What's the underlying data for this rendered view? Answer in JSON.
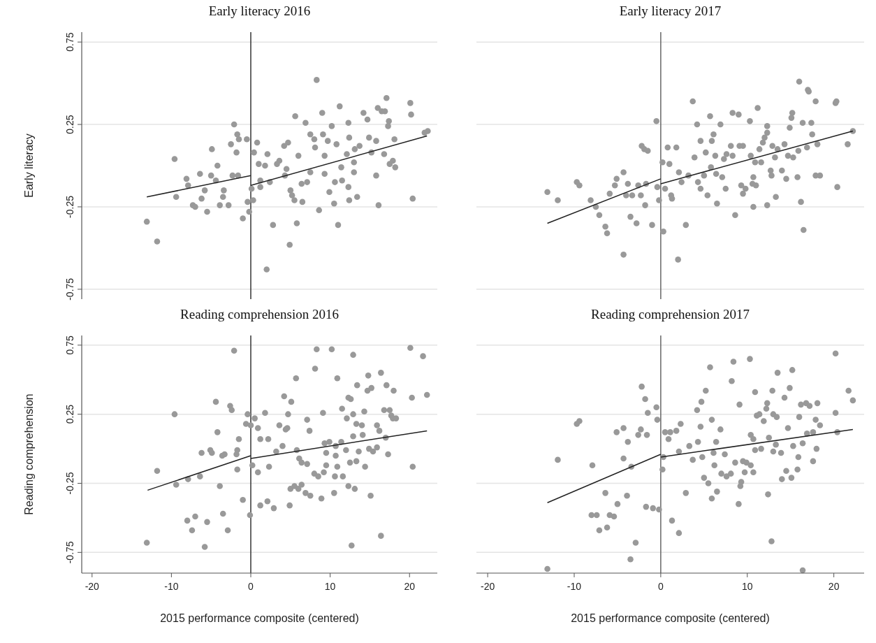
{
  "chart_data": [
    {
      "type": "scatter",
      "title": "Early literacy 2016",
      "ylabel": "Early literacy",
      "xlim": [
        -21.3,
        23.5
      ],
      "ylim": [
        -0.81,
        0.81
      ],
      "yticks": [
        -0.75,
        -0.25,
        0.25,
        0.75
      ],
      "grid": "y",
      "tick_labels": "y",
      "ref_lines": [
        {
          "axis": "x",
          "value": 0,
          "color": "#333333"
        }
      ],
      "series": [
        {
          "type": "scatter",
          "marker": "circle",
          "color": "#999999",
          "x": [
            8.3,
            17.1,
            20.1,
            11.2,
            9.0,
            14.2,
            16.0,
            16.5,
            16.9,
            20.2,
            5.6,
            14.7,
            6.9,
            12.3,
            -2.1,
            17.4,
            17.3,
            10.2,
            7.5,
            9.1,
            8.0,
            21.9,
            22.3,
            -1.7,
            -1.5,
            -0.5,
            -2.5,
            0.8,
            9.7,
            12.4,
            18.1,
            14.9,
            15.8,
            4.7,
            4.2,
            10.8,
            8.1,
            13.7,
            13.1,
            -4.9,
            0.4,
            -1.8,
            2.1,
            6.0,
            9.3,
            12.1,
            15.2,
            16.8,
            -9.6,
            3.6,
            3.3,
            1.0,
            1.8,
            13.0,
            17.9,
            17.5,
            18.2,
            11.4,
            4.5,
            -4.2,
            13.0,
            7.5,
            9.3,
            4.3,
            15.8,
            -6.4,
            -8.1,
            -5.0,
            -2.3,
            -1.6,
            -4.4,
            1.2,
            2.4,
            7.1,
            6.4,
            10.6,
            11.5,
            -7.9,
            -5.8,
            -3.4,
            0.1,
            1.2,
            5.0,
            5.2,
            9.9,
            12.3,
            -9.4,
            -6.2,
            -3.5,
            5.5,
            6.5,
            10.5,
            12.4,
            13.4,
            20.4,
            -7.3,
            -7.0,
            -3.9,
            -2.8,
            -0.4,
            0.3,
            16.1,
            -5.5,
            -0.2,
            8.6,
            -13.1,
            -1.0,
            2.8,
            5.8,
            11.0,
            -11.8,
            4.9,
            2.0
          ],
          "values": [
            0.52,
            0.41,
            0.38,
            0.36,
            0.32,
            0.32,
            0.35,
            0.33,
            0.33,
            0.31,
            0.3,
            0.28,
            0.26,
            0.26,
            0.25,
            0.27,
            0.24,
            0.24,
            0.19,
            0.19,
            0.16,
            0.2,
            0.21,
            0.19,
            0.16,
            0.16,
            0.13,
            0.14,
            0.15,
            0.17,
            0.16,
            0.17,
            0.15,
            0.14,
            0.12,
            0.13,
            0.11,
            0.12,
            0.1,
            0.1,
            0.08,
            0.08,
            0.07,
            0.06,
            0.06,
            0.07,
            0.08,
            0.07,
            0.04,
            0.03,
            0.01,
            0.01,
            0.0,
            0.02,
            0.03,
            0.01,
            -0.01,
            -0.01,
            -0.02,
            0.0,
            -0.04,
            -0.04,
            -0.05,
            -0.06,
            -0.06,
            -0.05,
            -0.08,
            -0.06,
            -0.06,
            -0.06,
            -0.09,
            -0.09,
            -0.1,
            -0.1,
            -0.11,
            -0.1,
            -0.09,
            -0.12,
            -0.15,
            -0.15,
            -0.14,
            -0.13,
            -0.15,
            -0.18,
            -0.16,
            -0.13,
            -0.19,
            -0.2,
            -0.19,
            -0.21,
            -0.22,
            -0.23,
            -0.21,
            -0.19,
            -0.2,
            -0.24,
            -0.25,
            -0.24,
            -0.24,
            -0.22,
            -0.21,
            -0.24,
            -0.28,
            -0.28,
            -0.27,
            -0.34,
            -0.32,
            -0.36,
            -0.35,
            -0.36,
            -0.46,
            -0.48,
            -0.63
          ]
        },
        {
          "type": "line",
          "color": "#222222",
          "x": [
            -13.1,
            0
          ],
          "values": [
            -0.19,
            -0.06
          ]
        },
        {
          "type": "line",
          "color": "#222222",
          "x": [
            0,
            22.2
          ],
          "values": [
            -0.12,
            0.18
          ]
        }
      ]
    },
    {
      "type": "scatter",
      "title": "Early literacy 2017",
      "xlim": [
        -21.3,
        23.5
      ],
      "ylim": [
        -0.81,
        0.81
      ],
      "yticks": [
        -0.75,
        -0.25,
        0.25,
        0.75
      ],
      "grid": "y",
      "tick_labels": false,
      "ref_lines": [
        {
          "axis": "x",
          "value": 0,
          "color": "#666666"
        }
      ],
      "series": [
        {
          "type": "scatter",
          "marker": "circle",
          "color": "#999999",
          "x": [
            16.0,
            17.0,
            17.1,
            3.7,
            17.9,
            20.3,
            20.2,
            11.2,
            8.3,
            9.0,
            5.7,
            15.2,
            15.1,
            -0.5,
            10.3,
            16.4,
            17.4,
            4.2,
            6.9,
            12.3,
            14.9,
            22.2,
            6.1,
            12.3,
            12.0,
            17.5,
            4.6,
            5.9,
            11.8,
            21.6,
            -2.2,
            -1.9,
            -1.5,
            0.8,
            1.8,
            8.1,
            9.1,
            9.5,
            12.9,
            13.5,
            14.3,
            18.1,
            16.9,
            15.9,
            5.2,
            11.4,
            3.9,
            6.3,
            7.3,
            7.6,
            8.3,
            10.4,
            13.2,
            14.7,
            15.3,
            0.2,
            1.0,
            10.9,
            11.6,
            5.8,
            -4.3,
            2.1,
            3.2,
            5.0,
            6.4,
            7.1,
            12.7,
            12.8,
            14.0,
            14.5,
            15.8,
            17.9,
            18.4,
            -9.7,
            -9.4,
            -5.1,
            -5.3,
            -3.8,
            -2.6,
            -1.7,
            -0.4,
            0.5,
            2.4,
            4.3,
            4.6,
            7.5,
            9.3,
            9.8,
            10.7,
            10.6,
            11.0,
            -13.1,
            -11.9,
            -5.9,
            -4.0,
            -3.3,
            -2.3,
            1.2,
            1.3,
            5.4,
            9.5,
            20.4,
            13.3,
            -8.1,
            -7.5,
            -7.1,
            -0.2,
            -1.8,
            6.5,
            10.7,
            12.3,
            16.2,
            -3.5,
            -2.8,
            -6.4,
            -6.2,
            -1.0,
            0.3,
            2.9,
            8.6,
            16.5,
            -4.3,
            2.0
          ],
          "values": [
            0.51,
            0.46,
            0.45,
            0.39,
            0.39,
            0.39,
            0.38,
            0.35,
            0.32,
            0.31,
            0.3,
            0.32,
            0.29,
            0.27,
            0.27,
            0.26,
            0.26,
            0.25,
            0.25,
            0.24,
            0.23,
            0.21,
            0.19,
            0.2,
            0.17,
            0.19,
            0.15,
            0.15,
            0.14,
            0.13,
            0.12,
            0.1,
            0.09,
            0.11,
            0.11,
            0.12,
            0.12,
            0.12,
            0.12,
            0.1,
            0.13,
            0.13,
            0.11,
            0.09,
            0.08,
            0.1,
            0.05,
            0.06,
            0.04,
            0.07,
            0.06,
            0.06,
            0.05,
            0.06,
            0.05,
            0.02,
            0.01,
            0.02,
            0.02,
            -0.01,
            -0.04,
            -0.04,
            -0.06,
            -0.06,
            -0.05,
            -0.07,
            -0.03,
            -0.06,
            -0.03,
            -0.08,
            -0.07,
            -0.06,
            -0.06,
            -0.1,
            -0.12,
            -0.08,
            -0.12,
            -0.11,
            -0.12,
            -0.11,
            -0.13,
            -0.14,
            -0.1,
            -0.1,
            -0.14,
            -0.14,
            -0.12,
            -0.14,
            -0.07,
            -0.11,
            -0.12,
            -0.16,
            -0.21,
            -0.17,
            -0.18,
            -0.18,
            -0.18,
            -0.18,
            -0.2,
            -0.18,
            -0.17,
            -0.13,
            -0.19,
            -0.21,
            -0.25,
            -0.3,
            -0.21,
            -0.24,
            -0.23,
            -0.25,
            -0.24,
            -0.22,
            -0.31,
            -0.35,
            -0.37,
            -0.41,
            -0.36,
            -0.4,
            -0.36,
            -0.3,
            -0.39,
            -0.54,
            -0.57
          ]
        },
        {
          "type": "line",
          "color": "#222222",
          "x": [
            -13.1,
            0
          ],
          "values": [
            -0.35,
            -0.08
          ]
        },
        {
          "type": "line",
          "color": "#222222",
          "x": [
            0,
            22.2
          ],
          "values": [
            -0.11,
            0.21
          ]
        }
      ]
    },
    {
      "type": "scatter",
      "title": "Reading comprehension 2016",
      "xlabel": "2015 performance composite (centered)",
      "ylabel": "Reading comprehension",
      "xlim": [
        -21.3,
        23.5
      ],
      "ylim": [
        -0.9,
        0.82
      ],
      "xticks": [
        -20,
        -10,
        0,
        10,
        20
      ],
      "yticks": [
        -0.75,
        -0.25,
        0.25,
        0.75
      ],
      "grid": "y",
      "ref_lines": [
        {
          "axis": "x",
          "value": 0,
          "color": "#333333"
        }
      ],
      "series": [
        {
          "type": "scatter",
          "marker": "circle",
          "color": "#999999",
          "x": [
            -2.1,
            8.3,
            10.2,
            20.1,
            12.9,
            21.7,
            8.1,
            16.4,
            5.7,
            10.9,
            14.8,
            13.4,
            17.1,
            14.7,
            15.2,
            18.0,
            22.2,
            4.2,
            20.3,
            12.3,
            12.6,
            -4.4,
            5.1,
            -2.6,
            -2.4,
            11.5,
            -9.6,
            -0.4,
            1.8,
            4.7,
            9.1,
            12.9,
            14.3,
            16.8,
            17.5,
            17.7,
            17.9,
            18.3,
            0.5,
            7.1,
            12.1,
            -0.6,
            0.0,
            0.9,
            3.6,
            4.4,
            4.6,
            13.3,
            14.0,
            15.9,
            16.2,
            -4.2,
            7.4,
            14.1,
            17.0,
            12.9,
            -1.5,
            1.2,
            2.2,
            4.0,
            9.3,
            9.9,
            11.4,
            10.7,
            -6.2,
            -5.1,
            -4.9,
            -1.7,
            -1.8,
            -3.6,
            -3.3,
            3.2,
            5.8,
            9.5,
            10.7,
            12.0,
            13.6,
            14.9,
            15.4,
            15.9,
            17.3,
            6.1,
            6.4,
            7.1,
            9.5,
            12.5,
            13.3,
            14.4,
            20.4,
            0.2,
            2.3,
            -1.7,
            0.9,
            10.9,
            8.0,
            8.5,
            9.2,
            10.6,
            11.6,
            -11.8,
            -7.9,
            -6.4,
            -9.4,
            -3.9,
            5.0,
            5.5,
            6.0,
            6.4,
            6.9,
            7.5,
            8.9,
            10.5,
            12.3,
            13.1,
            15.1,
            -1.0,
            1.2,
            2.1,
            2.9,
            4.9,
            -0.1,
            -3.5,
            -7.0,
            -8.0,
            -5.5,
            -7.4,
            -2.9,
            16.4,
            -13.1,
            -5.8,
            12.7
          ],
          "values": [
            0.71,
            0.72,
            0.72,
            0.73,
            0.68,
            0.67,
            0.58,
            0.55,
            0.51,
            0.51,
            0.53,
            0.46,
            0.46,
            0.42,
            0.44,
            0.42,
            0.39,
            0.38,
            0.37,
            0.37,
            0.36,
            0.34,
            0.34,
            0.31,
            0.28,
            0.29,
            0.25,
            0.25,
            0.26,
            0.25,
            0.26,
            0.25,
            0.27,
            0.28,
            0.28,
            0.24,
            0.22,
            0.22,
            0.22,
            0.21,
            0.22,
            0.18,
            0.17,
            0.15,
            0.17,
            0.14,
            0.15,
            0.18,
            0.17,
            0.17,
            0.13,
            0.12,
            0.13,
            0.1,
            0.08,
            0.09,
            0.07,
            0.07,
            0.07,
            0.02,
            0.04,
            0.05,
            0.05,
            0.02,
            -0.03,
            -0.01,
            -0.03,
            -0.01,
            -0.04,
            -0.05,
            -0.04,
            -0.02,
            -0.01,
            -0.03,
            -0.05,
            -0.01,
            -0.02,
            0.0,
            -0.02,
            0.01,
            -0.04,
            -0.07,
            -0.1,
            -0.11,
            -0.12,
            -0.1,
            -0.09,
            -0.13,
            -0.13,
            -0.12,
            -0.13,
            -0.15,
            -0.17,
            -0.13,
            -0.18,
            -0.2,
            -0.17,
            -0.2,
            -0.2,
            -0.16,
            -0.22,
            -0.2,
            -0.26,
            -0.27,
            -0.29,
            -0.27,
            -0.29,
            -0.26,
            -0.32,
            -0.34,
            -0.36,
            -0.32,
            -0.27,
            -0.29,
            -0.34,
            -0.37,
            -0.41,
            -0.38,
            -0.43,
            -0.41,
            -0.48,
            -0.47,
            -0.49,
            -0.52,
            -0.53,
            -0.59,
            -0.59,
            -0.63,
            -0.68,
            -0.71,
            -0.7
          ]
        },
        {
          "type": "line",
          "color": "#222222",
          "x": [
            -13.0,
            0
          ],
          "values": [
            -0.3,
            -0.05
          ]
        },
        {
          "type": "line",
          "color": "#222222",
          "x": [
            0,
            22.2
          ],
          "values": [
            -0.07,
            0.13
          ]
        }
      ]
    },
    {
      "type": "scatter",
      "title": "Reading comprehension 2017",
      "xlabel": "2015 performance composite (centered)",
      "xlim": [
        -21.3,
        23.5
      ],
      "ylim": [
        -0.9,
        0.82
      ],
      "xticks": [
        -20,
        -10,
        0,
        10,
        20
      ],
      "yticks": [
        -0.75,
        -0.25,
        0.25,
        0.75
      ],
      "grid": "y",
      "tick_labels": "x",
      "ref_lines": [
        {
          "axis": "x",
          "value": 0,
          "color": "#666666"
        }
      ],
      "series": [
        {
          "type": "scatter",
          "marker": "circle",
          "color": "#999999",
          "x": [
            20.2,
            10.3,
            8.4,
            5.7,
            15.2,
            13.5,
            8.2,
            -2.2,
            5.2,
            14.9,
            12.9,
            10.9,
            21.7,
            22.2,
            -1.8,
            4.7,
            14.3,
            9.1,
            12.3,
            16.2,
            16.8,
            17.2,
            18.1,
            -0.5,
            4.2,
            -1.5,
            20.2,
            11.1,
            11.4,
            12.2,
            13.0,
            13.4,
            11.9,
            16.0,
            17.9,
            18.4,
            -9.7,
            -9.4,
            -0.4,
            5.9,
            2.3,
            6.9,
            -5.1,
            -4.3,
            -2.3,
            -2.6,
            -1.6,
            0.5,
            1.1,
            1.8,
            0.9,
            4.6,
            14.7,
            10.4,
            10.7,
            12.5,
            16.9,
            17.6,
            20.4,
            -3.8,
            4.3,
            6.4,
            13.3,
            15.3,
            16.4,
            3.3,
            2.1,
            18.0,
            10.9,
            11.6,
            -11.9,
            -4.3,
            0.3,
            3.7,
            4.8,
            6.1,
            7.4,
            13.0,
            13.9,
            15.9,
            17.6,
            -7.9,
            -3.4,
            0.2,
            6.2,
            8.6,
            9.5,
            9.9,
            10.4,
            7.0,
            7.6,
            8.1,
            9.7,
            10.7,
            14.5,
            15.8,
            5.0,
            5.5,
            9.3,
            9.2,
            14.0,
            15.1,
            -6.4,
            -3.9,
            2.9,
            6.5,
            5.9,
            12.4,
            -5.0,
            9.0,
            -1.7,
            -0.9,
            -0.2,
            -8.0,
            -7.4,
            -5.9,
            -5.4,
            1.3,
            -7.1,
            -6.2,
            2.1,
            -2.9,
            12.8,
            -3.5,
            -13.1,
            16.4
          ],
          "values": [
            0.69,
            0.65,
            0.63,
            0.59,
            0.57,
            0.55,
            0.49,
            0.45,
            0.42,
            0.44,
            0.42,
            0.41,
            0.42,
            0.35,
            0.36,
            0.34,
            0.37,
            0.32,
            0.33,
            0.32,
            0.33,
            0.31,
            0.33,
            0.3,
            0.28,
            0.26,
            0.26,
            0.24,
            0.25,
            0.29,
            0.25,
            0.23,
            0.2,
            0.23,
            0.21,
            0.17,
            0.18,
            0.2,
            0.21,
            0.21,
            0.18,
            0.14,
            0.12,
            0.15,
            0.14,
            0.1,
            0.1,
            0.12,
            0.12,
            0.13,
            0.07,
            0.16,
            0.15,
            0.1,
            0.07,
            0.08,
            0.11,
            0.12,
            0.12,
            0.05,
            0.05,
            0.05,
            0.03,
            0.02,
            0.04,
            0.02,
            -0.02,
            0.0,
            -0.01,
            0.0,
            -0.08,
            -0.07,
            -0.06,
            -0.08,
            -0.06,
            -0.03,
            -0.04,
            -0.02,
            -0.03,
            -0.06,
            -0.09,
            -0.12,
            -0.13,
            -0.15,
            -0.12,
            -0.1,
            -0.09,
            -0.1,
            -0.12,
            -0.18,
            -0.2,
            -0.18,
            -0.17,
            -0.17,
            -0.16,
            -0.15,
            -0.21,
            -0.25,
            -0.24,
            -0.27,
            -0.22,
            -0.21,
            -0.32,
            -0.34,
            -0.32,
            -0.31,
            -0.36,
            -0.33,
            -0.4,
            -0.4,
            -0.42,
            -0.43,
            -0.44,
            -0.48,
            -0.48,
            -0.48,
            -0.49,
            -0.52,
            -0.59,
            -0.57,
            -0.61,
            -0.68,
            -0.67,
            -0.8,
            -0.87,
            -0.88
          ]
        },
        {
          "type": "line",
          "color": "#222222",
          "x": [
            -13.1,
            0
          ],
          "values": [
            -0.39,
            -0.04
          ]
        },
        {
          "type": "line",
          "color": "#222222",
          "x": [
            0,
            22.2
          ],
          "values": [
            -0.06,
            0.14
          ]
        }
      ]
    }
  ]
}
